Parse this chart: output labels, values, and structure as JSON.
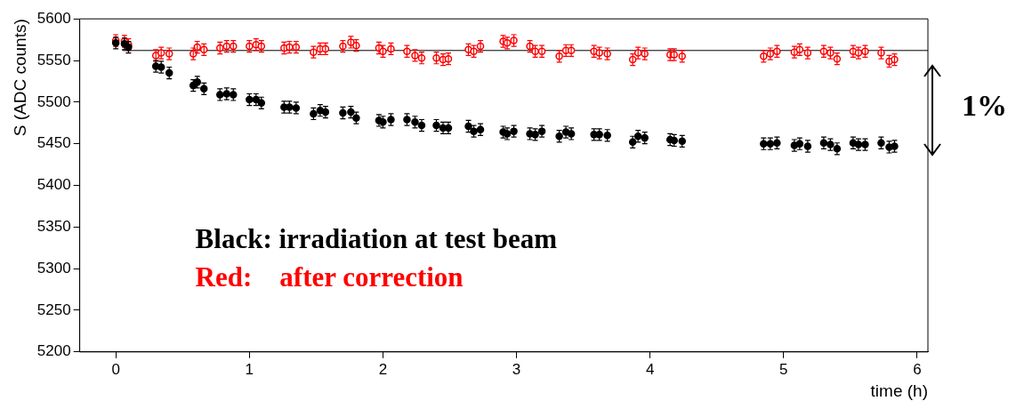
{
  "chart_data": {
    "type": "scatter",
    "xlabel": "time (h)",
    "ylabel": "S (ADC counts)",
    "xlim": [
      -0.27,
      6.08
    ],
    "xticks": [
      0,
      1,
      2,
      3,
      4,
      5,
      6
    ],
    "ylim": [
      5200,
      5600
    ],
    "yticks": [
      5200,
      5250,
      5300,
      5350,
      5400,
      5450,
      5500,
      5550,
      5600
    ],
    "marker": "circle",
    "legend": false,
    "annotations": [
      "Black: irradiation at test beam",
      "Red:    after correction",
      "1%"
    ],
    "x": [
      0,
      0.065,
      0.095,
      0.3,
      0.34,
      0.4,
      0.58,
      0.61,
      0.66,
      0.78,
      0.83,
      0.88,
      1.0,
      1.05,
      1.09,
      1.26,
      1.3,
      1.35,
      1.48,
      1.53,
      1.57,
      1.7,
      1.76,
      1.8,
      1.97,
      2.0,
      2.06,
      2.18,
      2.24,
      2.29,
      2.4,
      2.45,
      2.49,
      2.64,
      2.68,
      2.73,
      2.9,
      2.93,
      2.98,
      3.1,
      3.14,
      3.19,
      3.32,
      3.37,
      3.41,
      3.58,
      3.62,
      3.68,
      3.87,
      3.91,
      3.96,
      4.15,
      4.18,
      4.24,
      4.85,
      4.9,
      4.95,
      5.08,
      5.12,
      5.18,
      5.3,
      5.35,
      5.4,
      5.52,
      5.56,
      5.61,
      5.73,
      5.79,
      5.83
    ],
    "series": [
      {
        "color": "#000000",
        "values": [
          5571,
          5570,
          5566,
          5543,
          5542,
          5535,
          5520,
          5524,
          5516,
          5509,
          5510,
          5509,
          5503,
          5503,
          5499,
          5494,
          5494,
          5493,
          5486,
          5490,
          5488,
          5487,
          5488,
          5481,
          5478,
          5476,
          5479,
          5479,
          5476,
          5472,
          5472,
          5469,
          5469,
          5471,
          5465,
          5467,
          5464,
          5462,
          5465,
          5462,
          5461,
          5465,
          5459,
          5464,
          5462,
          5461,
          5461,
          5460,
          5452,
          5459,
          5457,
          5455,
          5454,
          5453,
          5450,
          5450,
          5451,
          5448,
          5450,
          5447,
          5451,
          5449,
          5444,
          5451,
          5449,
          5449,
          5451,
          5446,
          5447
        ],
        "errors": [
          7,
          7,
          7,
          7,
          7,
          7,
          7,
          7,
          7,
          7,
          7,
          7,
          7,
          7,
          7,
          7,
          7,
          7,
          7,
          7,
          7,
          7,
          7,
          7,
          7,
          7,
          7,
          7,
          7,
          7,
          7,
          7,
          7,
          7,
          7,
          7,
          7,
          7,
          7,
          7,
          7,
          7,
          7,
          7,
          7,
          7,
          7,
          7,
          7,
          7,
          7,
          7,
          7,
          7,
          7,
          7,
          7,
          7,
          7,
          7,
          7,
          7,
          7,
          7,
          7,
          7,
          7,
          7,
          7
        ]
      },
      {
        "color": "#ff0000",
        "values": [
          5574,
          5573,
          5569,
          5556,
          5559,
          5558,
          5558,
          5566,
          5563,
          5565,
          5567,
          5567,
          5567,
          5569,
          5567,
          5565,
          5566,
          5566,
          5560,
          5564,
          5564,
          5567,
          5572,
          5568,
          5565,
          5561,
          5564,
          5561,
          5556,
          5553,
          5553,
          5551,
          5552,
          5563,
          5561,
          5567,
          5573,
          5571,
          5574,
          5567,
          5561,
          5561,
          5555,
          5562,
          5562,
          5561,
          5559,
          5558,
          5551,
          5559,
          5558,
          5557,
          5557,
          5555,
          5555,
          5558,
          5561,
          5560,
          5563,
          5559,
          5561,
          5559,
          5552,
          5561,
          5559,
          5561,
          5559,
          5549,
          5551
        ],
        "errors": [
          7,
          7,
          7,
          7,
          7,
          7,
          7,
          7,
          7,
          7,
          7,
          7,
          7,
          7,
          7,
          7,
          7,
          7,
          7,
          7,
          7,
          7,
          7,
          7,
          7,
          7,
          7,
          7,
          7,
          7,
          7,
          7,
          7,
          7,
          7,
          7,
          7,
          7,
          7,
          7,
          7,
          7,
          7,
          7,
          7,
          7,
          7,
          7,
          7,
          7,
          7,
          7,
          7,
          7,
          7,
          7,
          7,
          7,
          7,
          7,
          7,
          7,
          7,
          7,
          7,
          7,
          7,
          7,
          7
        ]
      },
      {
        "type": "line",
        "color": "#000000",
        "marker": "none",
        "x": [
          0.05,
          6.08
        ],
        "values": [
          5562,
          5562
        ]
      }
    ]
  }
}
